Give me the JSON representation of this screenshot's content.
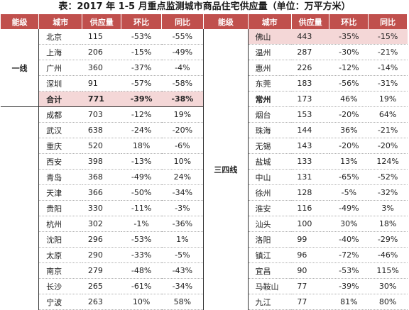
{
  "title": "表：2017 年 1-5 月重点监测城市商品住宅供应量（单位：万平方米）",
  "headers": [
    "能级",
    "城市",
    "供应量",
    "环比",
    "同比",
    "能级",
    "城市",
    "供应量",
    "环比",
    "同比"
  ],
  "left": {
    "tier1_label": "一线",
    "tier1_rows": [
      {
        "city": "北京",
        "supply": "115",
        "mom": "-53%",
        "yoy": "-55%"
      },
      {
        "city": "上海",
        "supply": "206",
        "mom": "-15%",
        "yoy": "-49%"
      },
      {
        "city": "广州",
        "supply": "360",
        "mom": "-37%",
        "yoy": "-4%"
      },
      {
        "city": "深圳",
        "supply": "91",
        "mom": "-57%",
        "yoy": "-58%"
      }
    ],
    "total": {
      "city": "合计",
      "supply": "771",
      "mom": "-39%",
      "yoy": "-38%"
    },
    "tier2_rows": [
      {
        "city": "成都",
        "supply": "703",
        "mom": "-12%",
        "yoy": "19%"
      },
      {
        "city": "武汉",
        "supply": "638",
        "mom": "-24%",
        "yoy": "-20%"
      },
      {
        "city": "重庆",
        "supply": "520",
        "mom": "18%",
        "yoy": "-6%"
      },
      {
        "city": "西安",
        "supply": "398",
        "mom": "-13%",
        "yoy": "10%"
      },
      {
        "city": "青岛",
        "supply": "368",
        "mom": "-49%",
        "yoy": "24%"
      },
      {
        "city": "天津",
        "supply": "366",
        "mom": "-50%",
        "yoy": "-34%"
      },
      {
        "city": "贵阳",
        "supply": "330",
        "mom": "-11%",
        "yoy": "-3%"
      },
      {
        "city": "杭州",
        "supply": "302",
        "mom": "-1%",
        "yoy": "-36%"
      },
      {
        "city": "沈阳",
        "supply": "296",
        "mom": "-53%",
        "yoy": "1%"
      },
      {
        "city": "太原",
        "supply": "290",
        "mom": "-33%",
        "yoy": "-5%"
      },
      {
        "city": "南京",
        "supply": "279",
        "mom": "-48%",
        "yoy": "-43%"
      },
      {
        "city": "长沙",
        "supply": "265",
        "mom": "-61%",
        "yoy": "-34%"
      },
      {
        "city": "宁波",
        "supply": "263",
        "mom": "10%",
        "yoy": "58%"
      }
    ]
  },
  "right": {
    "tier_label": "三四线",
    "rows": [
      {
        "city": "佛山",
        "supply": "443",
        "mom": "-35%",
        "yoy": "-15%"
      },
      {
        "city": "温州",
        "supply": "287",
        "mom": "-30%",
        "yoy": "-21%"
      },
      {
        "city": "惠州",
        "supply": "226",
        "mom": "-12%",
        "yoy": "-14%"
      },
      {
        "city": "东莞",
        "supply": "183",
        "mom": "-56%",
        "yoy": "-31%"
      },
      {
        "city": "常州",
        "supply": "173",
        "mom": "46%",
        "yoy": "19%"
      },
      {
        "city": "烟台",
        "supply": "153",
        "mom": "-20%",
        "yoy": "64%"
      },
      {
        "city": "珠海",
        "supply": "144",
        "mom": "36%",
        "yoy": "-21%"
      },
      {
        "city": "无锡",
        "supply": "143",
        "mom": "-20%",
        "yoy": "-20%"
      },
      {
        "city": "盐城",
        "supply": "133",
        "mom": "13%",
        "yoy": "124%"
      },
      {
        "city": "中山",
        "supply": "131",
        "mom": "-65%",
        "yoy": "-52%"
      },
      {
        "city": "徐州",
        "supply": "128",
        "mom": "-5%",
        "yoy": "-32%"
      },
      {
        "city": "淮安",
        "supply": "116",
        "mom": "-49%",
        "yoy": "3%"
      },
      {
        "city": "汕头",
        "supply": "100",
        "mom": "30%",
        "yoy": "18%"
      },
      {
        "city": "洛阳",
        "supply": "99",
        "mom": "-40%",
        "yoy": "-29%"
      },
      {
        "city": "镇江",
        "supply": "96",
        "mom": "-72%",
        "yoy": "-46%"
      },
      {
        "city": "宜昌",
        "supply": "90",
        "mom": "-53%",
        "yoy": "115%"
      },
      {
        "city": "马鞍山",
        "supply": "77",
        "mom": "-39%",
        "yoy": "30%"
      },
      {
        "city": "九江",
        "supply": "77",
        "mom": "81%",
        "yoy": "80%"
      }
    ]
  },
  "colors": {
    "header_bg": "#c0504d",
    "highlight_bg": "#f4d7d7"
  }
}
